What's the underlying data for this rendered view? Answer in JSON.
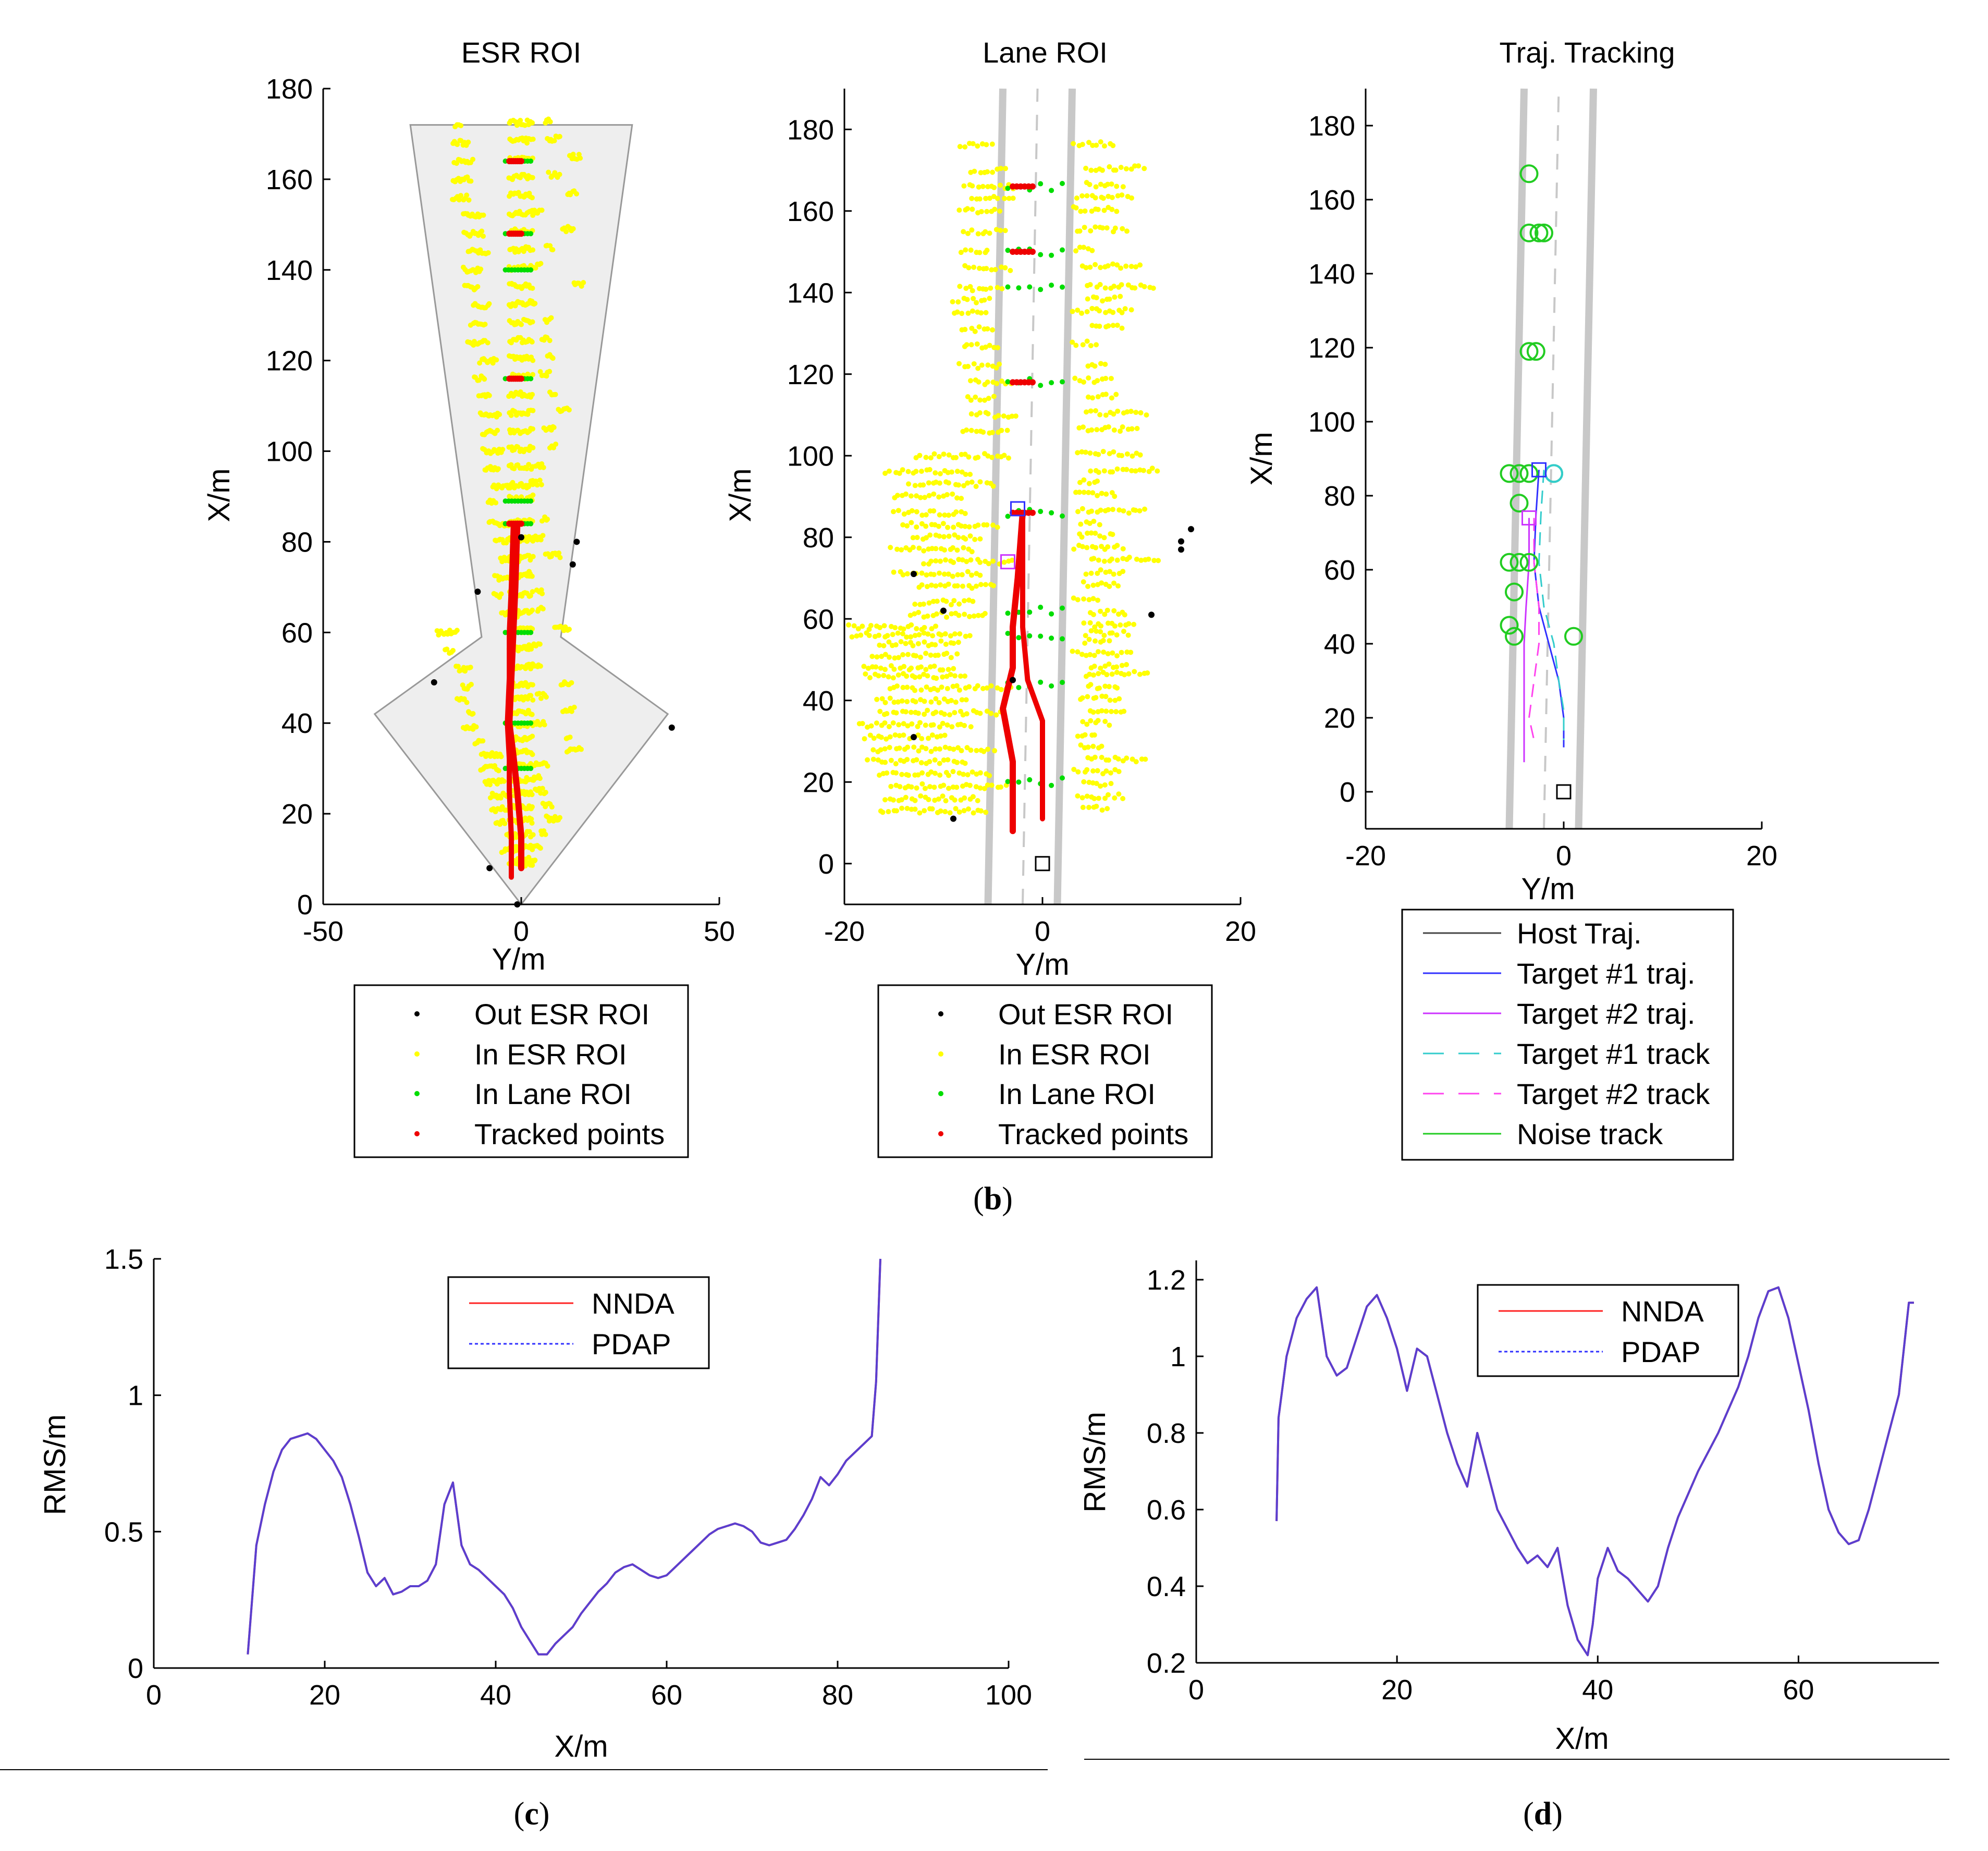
{
  "figure": {
    "caption_b": {
      "open": "(",
      "letter": "b",
      "close": ")"
    },
    "caption_c": {
      "open": "(",
      "letter": "c",
      "close": ")"
    },
    "caption_d": {
      "open": "(",
      "letter": "d",
      "close": ")"
    }
  },
  "colors": {
    "out_esr": "#000000",
    "in_esr": "#ffff00",
    "in_lane": "#00dd00",
    "tracked": "#ee0000",
    "roi_fill": "#eeeeee",
    "lane_line": "#c8c8c8",
    "host": "#444444",
    "t1_traj": "#3030ff",
    "t2_traj": "#cc33ff",
    "t1_track": "#33cccc",
    "t2_track": "#ff44ee",
    "noise": "#22cc22",
    "nnda": "#ff2222",
    "pdap": "#5a3fd0"
  },
  "chart_data": [
    {
      "id": "esr",
      "type": "scatter",
      "title": "ESR ROI",
      "xlabel": "Y/m",
      "ylabel": "X/m",
      "xlim": [
        -50,
        50
      ],
      "ylim": [
        0,
        180
      ],
      "xticks": [
        -50,
        0,
        50
      ],
      "yticks": [
        0,
        20,
        40,
        60,
        80,
        100,
        120,
        140,
        160,
        180
      ],
      "legend": [
        "Out ESR ROI",
        "In ESR ROI",
        "In Lane ROI",
        "Tracked points"
      ],
      "roi_polygon": [
        [
          0,
          0
        ],
        [
          -37,
          42
        ],
        [
          -10,
          59
        ],
        [
          -28,
          172
        ],
        [
          28,
          172
        ],
        [
          10,
          59
        ],
        [
          37,
          42
        ]
      ],
      "out_points": [
        [
          -8,
          8
        ],
        [
          -22,
          49
        ],
        [
          -11,
          69
        ],
        [
          14,
          80
        ],
        [
          13,
          75
        ],
        [
          38,
          39
        ],
        [
          -1,
          0
        ],
        [
          0,
          81
        ]
      ],
      "in_lane_rows": [
        164,
        148,
        140,
        116,
        89,
        84,
        60,
        40,
        30
      ],
      "tracked_rows": [
        164,
        148,
        116,
        84
      ],
      "tracked_traj": [
        [
          -1,
          84
        ],
        [
          -1.5,
          70
        ],
        [
          -2,
          60
        ],
        [
          -2.5,
          50
        ],
        [
          -3,
          40
        ],
        [
          -2,
          33
        ],
        [
          -1,
          25
        ],
        [
          0,
          15
        ],
        [
          0,
          8
        ]
      ],
      "tracked_traj2": [
        [
          -2,
          84
        ],
        [
          -2.5,
          70
        ],
        [
          -3,
          60
        ],
        [
          -3,
          50
        ],
        [
          -3.5,
          40
        ],
        [
          -3,
          32
        ],
        [
          -3,
          25
        ],
        [
          -2.5,
          15
        ],
        [
          -2.5,
          6
        ]
      ]
    },
    {
      "id": "lane",
      "type": "scatter",
      "title": "Lane ROI",
      "xlabel": "Y/m",
      "ylabel": "X/m",
      "xlim": [
        -20,
        20
      ],
      "ylim": [
        -10,
        190
      ],
      "xticks": [
        -20,
        0,
        20
      ],
      "yticks": [
        0,
        20,
        40,
        60,
        80,
        100,
        120,
        140,
        160,
        180
      ],
      "legend": [
        "Out ESR ROI",
        "In ESR ROI",
        "In Lane ROI",
        "Tracked points"
      ],
      "lane_left": [
        [
          -5.5,
          -10
        ],
        [
          -4,
          190
        ]
      ],
      "lane_right": [
        [
          1.5,
          -10
        ],
        [
          3,
          190
        ]
      ],
      "lane_center": [
        [
          -2,
          -10
        ],
        [
          -0.5,
          190
        ]
      ],
      "out_points": [
        [
          -13,
          71
        ],
        [
          -10,
          62
        ],
        [
          -9,
          11
        ],
        [
          -13,
          31
        ],
        [
          14,
          77
        ],
        [
          14,
          79
        ],
        [
          15,
          82
        ],
        [
          11,
          61
        ],
        [
          -3,
          45
        ]
      ],
      "host_box": [
        0,
        0
      ],
      "t1_box": [
        -2.5,
        87
      ],
      "t2_box": [
        -3.5,
        74
      ],
      "in_lane_rows": [
        166,
        150,
        141,
        118,
        86,
        62,
        56,
        44,
        20
      ],
      "tracked_rows": [
        166,
        150,
        118,
        86
      ],
      "tracked_traj": [
        [
          -2,
          86
        ],
        [
          -2.5,
          70
        ],
        [
          -3,
          58
        ],
        [
          -3,
          48
        ],
        [
          -4,
          38
        ],
        [
          -3,
          25
        ],
        [
          -3,
          12
        ],
        [
          -3,
          8
        ]
      ],
      "tracked_traj2": [
        [
          -2,
          86
        ],
        [
          -2,
          70
        ],
        [
          -2,
          58
        ],
        [
          -1.5,
          45
        ],
        [
          0,
          35
        ],
        [
          0,
          25
        ],
        [
          0,
          14
        ],
        [
          0,
          11
        ]
      ]
    },
    {
      "id": "traj",
      "type": "line",
      "title": "Traj. Tracking",
      "xlabel": "Y/m",
      "ylabel": "X/m",
      "xlim": [
        -20,
        20
      ],
      "ylim": [
        -10,
        190
      ],
      "xticks": [
        -20,
        0,
        20
      ],
      "yticks": [
        0,
        20,
        40,
        60,
        80,
        100,
        120,
        140,
        160,
        180
      ],
      "legend": [
        "Host Traj.",
        "Target #1 traj.",
        "Target #2 traj.",
        "Target #1 track",
        "Target #2 track",
        "Noise track"
      ],
      "lane_left": [
        [
          -5.5,
          -10
        ],
        [
          -4,
          190
        ]
      ],
      "lane_right": [
        [
          1.5,
          -10
        ],
        [
          3,
          190
        ]
      ],
      "lane_center": [
        [
          -2,
          -10
        ],
        [
          -0.5,
          190
        ]
      ],
      "host_box": [
        0,
        0
      ],
      "t1_box": [
        -2.5,
        87
      ],
      "t2_box": [
        -3.5,
        74
      ],
      "t1_traj": [
        [
          -2.5,
          87
        ],
        [
          -2.8,
          75
        ],
        [
          -3,
          62
        ],
        [
          -2.5,
          50
        ],
        [
          -1.5,
          40
        ],
        [
          -0.5,
          30
        ],
        [
          0,
          20
        ],
        [
          0,
          12
        ]
      ],
      "t2_traj": [
        [
          -3.5,
          74
        ],
        [
          -3.5,
          62
        ],
        [
          -3.8,
          50
        ],
        [
          -4,
          40
        ],
        [
          -4,
          30
        ],
        [
          -4,
          20
        ],
        [
          -4,
          8
        ]
      ],
      "t1_track": [
        [
          -2,
          87
        ],
        [
          -2.3,
          75
        ],
        [
          -2.5,
          62
        ],
        [
          -2,
          50
        ],
        [
          -1,
          40
        ],
        [
          -0.5,
          30
        ],
        [
          0,
          22
        ],
        [
          0,
          14
        ]
      ],
      "t2_track": [
        [
          -3,
          74
        ],
        [
          -3,
          62
        ],
        [
          -2.5,
          50
        ],
        [
          -2.5,
          40
        ],
        [
          -3,
          30
        ],
        [
          -3.5,
          20
        ],
        [
          -3,
          14
        ]
      ],
      "noise": [
        [
          -3.5,
          167
        ],
        [
          -3.5,
          151
        ],
        [
          -2.5,
          151
        ],
        [
          -2,
          151
        ],
        [
          -3.5,
          119
        ],
        [
          -2.8,
          119
        ],
        [
          -5.5,
          86
        ],
        [
          -4.5,
          86
        ],
        [
          -3.5,
          86
        ],
        [
          -1,
          86
        ],
        [
          -4.5,
          78
        ],
        [
          -5.5,
          62
        ],
        [
          -4.5,
          62
        ],
        [
          -3.5,
          62
        ],
        [
          -5,
          54
        ],
        [
          -5.5,
          45
        ],
        [
          -5,
          42
        ],
        [
          1,
          42
        ]
      ]
    },
    {
      "id": "rms_c",
      "type": "line",
      "xlabel": "X/m",
      "ylabel": "RMS/m",
      "xlim": [
        0,
        100
      ],
      "ylim": [
        0,
        1.5
      ],
      "xticks": [
        0,
        20,
        40,
        60,
        80,
        100
      ],
      "yticks": [
        0,
        0.5,
        1,
        1.5
      ],
      "ytick_labels": [
        "0",
        "0.5",
        "1",
        "1.5"
      ],
      "legend": [
        "NNDA",
        "PDAP"
      ],
      "x": [
        11,
        12,
        13,
        14,
        15,
        16,
        17,
        18,
        19,
        20,
        21,
        22,
        23,
        24,
        25,
        26,
        27,
        28,
        29,
        30,
        31,
        32,
        33,
        34,
        35,
        36,
        37,
        38,
        39,
        40,
        41,
        42,
        43,
        44,
        45,
        46,
        47,
        48,
        49,
        50,
        51,
        52,
        53,
        54,
        55,
        56,
        57,
        58,
        59,
        60,
        61,
        62,
        63,
        64,
        65,
        66,
        67,
        68,
        69,
        70,
        71,
        72,
        73,
        74,
        75,
        76,
        77,
        78,
        79,
        80,
        81,
        82,
        83,
        84,
        84.5,
        85
      ],
      "series": [
        {
          "name": "NNDA",
          "values": [
            0.05,
            0.45,
            0.6,
            0.72,
            0.8,
            0.84,
            0.85,
            0.86,
            0.84,
            0.8,
            0.76,
            0.7,
            0.6,
            0.48,
            0.35,
            0.3,
            0.33,
            0.27,
            0.28,
            0.3,
            0.3,
            0.32,
            0.38,
            0.6,
            0.68,
            0.45,
            0.38,
            0.36,
            0.33,
            0.3,
            0.27,
            0.22,
            0.15,
            0.1,
            0.05,
            0.05,
            0.09,
            0.12,
            0.15,
            0.2,
            0.24,
            0.28,
            0.31,
            0.35,
            0.37,
            0.38,
            0.36,
            0.34,
            0.33,
            0.34,
            0.37,
            0.4,
            0.43,
            0.46,
            0.49,
            0.51,
            0.52,
            0.53,
            0.52,
            0.5,
            0.46,
            0.45,
            0.46,
            0.47,
            0.51,
            0.56,
            0.62,
            0.7,
            0.67,
            0.71,
            0.76,
            0.79,
            0.82,
            0.85,
            1.05,
            1.5
          ]
        },
        {
          "name": "PDAP",
          "values": [
            0.05,
            0.45,
            0.6,
            0.72,
            0.8,
            0.84,
            0.85,
            0.86,
            0.84,
            0.8,
            0.76,
            0.7,
            0.6,
            0.48,
            0.35,
            0.3,
            0.33,
            0.27,
            0.28,
            0.3,
            0.3,
            0.32,
            0.38,
            0.6,
            0.68,
            0.45,
            0.38,
            0.36,
            0.33,
            0.3,
            0.27,
            0.22,
            0.15,
            0.1,
            0.05,
            0.05,
            0.09,
            0.12,
            0.15,
            0.2,
            0.24,
            0.28,
            0.31,
            0.35,
            0.37,
            0.38,
            0.36,
            0.34,
            0.33,
            0.34,
            0.37,
            0.4,
            0.43,
            0.46,
            0.49,
            0.51,
            0.52,
            0.53,
            0.52,
            0.5,
            0.46,
            0.45,
            0.46,
            0.47,
            0.51,
            0.56,
            0.62,
            0.7,
            0.67,
            0.71,
            0.76,
            0.79,
            0.82,
            0.85,
            1.05,
            1.5
          ]
        }
      ]
    },
    {
      "id": "rms_d",
      "type": "line",
      "xlabel": "X/m",
      "ylabel": "RMS/m",
      "xlim": [
        0,
        74
      ],
      "ylim": [
        0.2,
        1.2
      ],
      "xticks": [
        0,
        20,
        40,
        60
      ],
      "yticks": [
        0.2,
        0.4,
        0.6,
        0.8,
        1,
        1.2
      ],
      "ytick_labels": [
        "0.2",
        "0.4",
        "0.6",
        "0.8",
        "1",
        "1.2"
      ],
      "legend": [
        "NNDA",
        "PDAP"
      ],
      "x": [
        8,
        8.2,
        8.5,
        9,
        10,
        11,
        12,
        13,
        14,
        15,
        16,
        17,
        18,
        19,
        20,
        21,
        22,
        23,
        24,
        25,
        26,
        27,
        28,
        29,
        30,
        31,
        32,
        33,
        34,
        35,
        36,
        37,
        38,
        39,
        39.5,
        40,
        41,
        42,
        43,
        44,
        45,
        46,
        47,
        48,
        49,
        50,
        51,
        52,
        53,
        54,
        55,
        56,
        57,
        58,
        59,
        60,
        61,
        62,
        63,
        64,
        65,
        66,
        67,
        68,
        69,
        70,
        71,
        71.5
      ],
      "series": [
        {
          "name": "NNDA",
          "values": [
            0.57,
            0.84,
            0.9,
            1.0,
            1.1,
            1.15,
            1.18,
            1.0,
            0.95,
            0.97,
            1.05,
            1.13,
            1.16,
            1.1,
            1.02,
            0.91,
            1.02,
            1.0,
            0.9,
            0.8,
            0.72,
            0.66,
            0.8,
            0.7,
            0.6,
            0.55,
            0.5,
            0.46,
            0.48,
            0.45,
            0.5,
            0.35,
            0.26,
            0.22,
            0.3,
            0.42,
            0.5,
            0.44,
            0.42,
            0.39,
            0.36,
            0.4,
            0.5,
            0.58,
            0.64,
            0.7,
            0.75,
            0.8,
            0.86,
            0.92,
            1.0,
            1.1,
            1.17,
            1.18,
            1.1,
            0.98,
            0.86,
            0.72,
            0.6,
            0.54,
            0.51,
            0.52,
            0.6,
            0.7,
            0.8,
            0.9,
            1.14,
            1.14
          ]
        },
        {
          "name": "PDAP",
          "values": [
            0.57,
            0.84,
            0.9,
            1.0,
            1.1,
            1.15,
            1.18,
            1.0,
            0.95,
            0.97,
            1.05,
            1.13,
            1.16,
            1.1,
            1.02,
            0.91,
            1.02,
            1.0,
            0.9,
            0.8,
            0.72,
            0.66,
            0.8,
            0.7,
            0.6,
            0.55,
            0.5,
            0.46,
            0.48,
            0.45,
            0.5,
            0.35,
            0.26,
            0.22,
            0.3,
            0.42,
            0.5,
            0.44,
            0.42,
            0.39,
            0.36,
            0.4,
            0.5,
            0.58,
            0.64,
            0.7,
            0.75,
            0.8,
            0.86,
            0.92,
            1.0,
            1.1,
            1.17,
            1.18,
            1.1,
            0.98,
            0.86,
            0.72,
            0.6,
            0.54,
            0.51,
            0.52,
            0.6,
            0.7,
            0.8,
            0.9,
            1.14,
            1.14
          ]
        }
      ]
    }
  ]
}
